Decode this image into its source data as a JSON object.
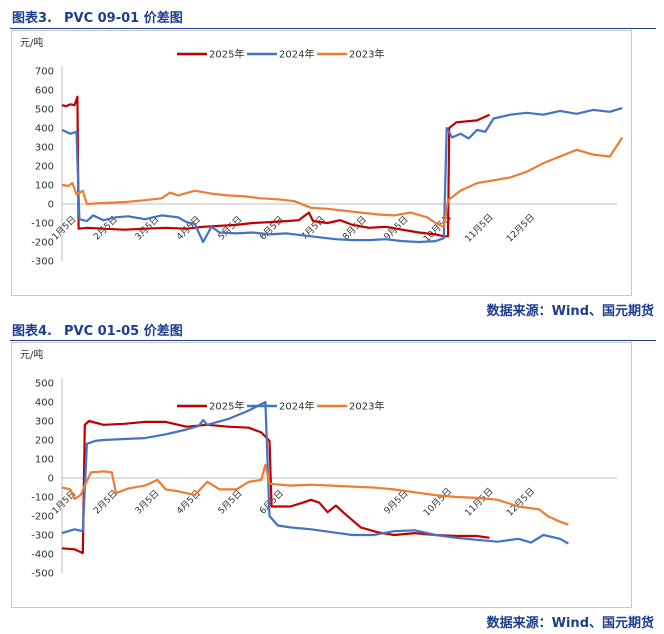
{
  "source_text": "数据来源：Wind、国元期货",
  "colors": {
    "y2025": "#c00000",
    "y2024": "#4472c4",
    "y2023": "#ed7d31",
    "title": "#1f3d8f"
  },
  "chart_data": [
    {
      "type": "line",
      "figure_num": "图表3.",
      "title": "PVC 09-01 价差图",
      "unit": "元/吨",
      "ylim": [
        -300,
        700
      ],
      "yticks": [
        "700",
        "600",
        "500",
        "400",
        "300",
        "200",
        "100",
        "0",
        "-100",
        "-200",
        "-300"
      ],
      "xticks": [
        "1月5日",
        "2月5日",
        "3月5日",
        "4月5日",
        "5月5日",
        "6月5日",
        "7月5日",
        "8月5日",
        "9月5日",
        "10月5日",
        "11月5日",
        "12月5日"
      ],
      "legend": "top-center",
      "grid": false,
      "series": [
        {
          "name": "2025年",
          "color": "#c00000",
          "points": [
            [
              0,
              520
            ],
            [
              0.1,
              515
            ],
            [
              0.2,
              525
            ],
            [
              0.3,
              520
            ],
            [
              0.37,
              565
            ],
            [
              0.4,
              -130
            ],
            [
              0.6,
              -125
            ],
            [
              1,
              -130
            ],
            [
              1.5,
              -135
            ],
            [
              2,
              -130
            ],
            [
              2.5,
              -125
            ],
            [
              3,
              -130
            ],
            [
              3.4,
              -120
            ],
            [
              3.8,
              -115
            ],
            [
              4.2,
              -110
            ],
            [
              4.6,
              -100
            ],
            [
              5,
              -95
            ],
            [
              5.4,
              -90
            ],
            [
              5.7,
              -85
            ],
            [
              5.95,
              -45
            ],
            [
              6.05,
              -90
            ],
            [
              6.4,
              -100
            ],
            [
              6.7,
              -85
            ],
            [
              7,
              -110
            ],
            [
              7.4,
              -125
            ],
            [
              7.8,
              -120
            ],
            [
              8.2,
              -135
            ],
            [
              8.6,
              -150
            ],
            [
              9,
              -160
            ],
            [
              9.2,
              -170
            ],
            [
              9.3,
              -170
            ],
            [
              9.33,
              400
            ],
            [
              9.5,
              430
            ],
            [
              10,
              440
            ],
            [
              10.3,
              470
            ]
          ]
        },
        {
          "name": "2024年",
          "color": "#4472c4",
          "points": [
            [
              0,
              390
            ],
            [
              0.2,
              370
            ],
            [
              0.35,
              380
            ],
            [
              0.42,
              -80
            ],
            [
              0.6,
              -90
            ],
            [
              0.75,
              -60
            ],
            [
              1,
              -85
            ],
            [
              1.3,
              -70
            ],
            [
              1.6,
              -65
            ],
            [
              2,
              -80
            ],
            [
              2.4,
              -60
            ],
            [
              2.8,
              -70
            ],
            [
              3,
              -95
            ],
            [
              3.2,
              -105
            ],
            [
              3.4,
              -200
            ],
            [
              3.6,
              -120
            ],
            [
              3.8,
              -150
            ],
            [
              4.2,
              -155
            ],
            [
              4.6,
              -150
            ],
            [
              5,
              -160
            ],
            [
              5.4,
              -155
            ],
            [
              5.8,
              -165
            ],
            [
              6.2,
              -175
            ],
            [
              6.6,
              -185
            ],
            [
              7,
              -190
            ],
            [
              7.4,
              -190
            ],
            [
              7.8,
              -185
            ],
            [
              8.2,
              -195
            ],
            [
              8.6,
              -200
            ],
            [
              9,
              -195
            ],
            [
              9.2,
              -180
            ],
            [
              9.27,
              400
            ],
            [
              9.4,
              350
            ],
            [
              9.6,
              370
            ],
            [
              9.8,
              345
            ],
            [
              10,
              390
            ],
            [
              10.2,
              380
            ],
            [
              10.4,
              450
            ],
            [
              10.8,
              470
            ],
            [
              11.2,
              480
            ],
            [
              11.6,
              470
            ],
            [
              12,
              490
            ],
            [
              12.4,
              475
            ],
            [
              12.8,
              495
            ],
            [
              13.2,
              485
            ],
            [
              13.5,
              505
            ]
          ]
        },
        {
          "name": "2023年",
          "color": "#ed7d31",
          "points": [
            [
              0,
              100
            ],
            [
              0.15,
              95
            ],
            [
              0.25,
              110
            ],
            [
              0.35,
              50
            ],
            [
              0.5,
              70
            ],
            [
              0.6,
              0
            ],
            [
              1,
              5
            ],
            [
              1.5,
              10
            ],
            [
              2,
              20
            ],
            [
              2.4,
              30
            ],
            [
              2.6,
              60
            ],
            [
              2.8,
              45
            ],
            [
              3.2,
              70
            ],
            [
              3.6,
              55
            ],
            [
              4,
              45
            ],
            [
              4.4,
              40
            ],
            [
              4.8,
              30
            ],
            [
              5.2,
              25
            ],
            [
              5.6,
              15
            ],
            [
              6,
              -20
            ],
            [
              6.4,
              -25
            ],
            [
              6.8,
              -35
            ],
            [
              7.2,
              -45
            ],
            [
              7.6,
              -55
            ],
            [
              8,
              -60
            ],
            [
              8.4,
              -45
            ],
            [
              8.8,
              -70
            ],
            [
              9,
              -100
            ],
            [
              9.2,
              -120
            ],
            [
              9.3,
              20
            ],
            [
              9.6,
              70
            ],
            [
              10,
              110
            ],
            [
              10.4,
              125
            ],
            [
              10.8,
              140
            ],
            [
              11.2,
              170
            ],
            [
              11.6,
              215
            ],
            [
              12,
              250
            ],
            [
              12.4,
              285
            ],
            [
              12.8,
              260
            ],
            [
              13.2,
              250
            ],
            [
              13.5,
              350
            ]
          ]
        }
      ]
    },
    {
      "type": "line",
      "figure_num": "图表4.",
      "title": "PVC 01-05 价差图",
      "unit": "元/吨",
      "ylim": [
        -500,
        500
      ],
      "yticks": [
        "500",
        "400",
        "300",
        "200",
        "100",
        "0",
        "-100",
        "-200",
        "-300",
        "-400",
        "-500"
      ],
      "xticks": [
        "1月5日",
        "2月5日",
        "3月5日",
        "4月5日",
        "5月5日",
        "6月5日",
        "9月5日",
        "10月5日",
        "11月5日",
        "12月5日"
      ],
      "legend": "top-center",
      "grid": false,
      "series": [
        {
          "name": "2025年",
          "color": "#c00000",
          "points": [
            [
              0,
              -370
            ],
            [
              0.3,
              -375
            ],
            [
              0.5,
              -395
            ],
            [
              0.55,
              280
            ],
            [
              0.65,
              300
            ],
            [
              1,
              280
            ],
            [
              1.5,
              285
            ],
            [
              2,
              295
            ],
            [
              2.5,
              295
            ],
            [
              3,
              270
            ],
            [
              3.5,
              280
            ],
            [
              4,
              270
            ],
            [
              4.5,
              265
            ],
            [
              4.8,
              240
            ],
            [
              5,
              195
            ],
            [
              5.05,
              -150
            ],
            [
              5.5,
              -150
            ],
            [
              5.8,
              -130
            ],
            [
              6,
              -115
            ],
            [
              6.2,
              -130
            ],
            [
              6.4,
              -180
            ],
            [
              6.6,
              -145
            ],
            [
              6.8,
              -185
            ],
            [
              7.2,
              -260
            ],
            [
              7.6,
              -285
            ],
            [
              8,
              -300
            ],
            [
              8.5,
              -290
            ],
            [
              9,
              -300
            ],
            [
              9.5,
              -305
            ],
            [
              10,
              -305
            ],
            [
              10.3,
              -315
            ]
          ]
        },
        {
          "name": "2024年",
          "color": "#4472c4",
          "points": [
            [
              0,
              -290
            ],
            [
              0.3,
              -270
            ],
            [
              0.5,
              -280
            ],
            [
              0.6,
              180
            ],
            [
              0.8,
              195
            ],
            [
              1,
              200
            ],
            [
              1.5,
              205
            ],
            [
              2,
              210
            ],
            [
              2.5,
              230
            ],
            [
              3,
              255
            ],
            [
              3.3,
              275
            ],
            [
              3.4,
              305
            ],
            [
              3.5,
              280
            ],
            [
              4,
              310
            ],
            [
              4.5,
              355
            ],
            [
              4.9,
              400
            ],
            [
              5,
              -200
            ],
            [
              5.2,
              -250
            ],
            [
              5.5,
              -260
            ],
            [
              6,
              -270
            ],
            [
              6.5,
              -285
            ],
            [
              7,
              -300
            ],
            [
              7.5,
              -300
            ],
            [
              8,
              -280
            ],
            [
              8.5,
              -275
            ],
            [
              9,
              -300
            ],
            [
              9.5,
              -315
            ],
            [
              10,
              -325
            ],
            [
              10.5,
              -335
            ],
            [
              11,
              -320
            ],
            [
              11.3,
              -340
            ],
            [
              11.6,
              -300
            ],
            [
              12,
              -320
            ],
            [
              12.2,
              -345
            ]
          ]
        },
        {
          "name": "2023年",
          "color": "#ed7d31",
          "points": [
            [
              0,
              -50
            ],
            [
              0.2,
              -60
            ],
            [
              0.3,
              -110
            ],
            [
              0.45,
              -90
            ],
            [
              0.55,
              -40
            ],
            [
              0.7,
              30
            ],
            [
              1,
              35
            ],
            [
              1.2,
              30
            ],
            [
              1.3,
              -80
            ],
            [
              1.6,
              -55
            ],
            [
              2,
              -40
            ],
            [
              2.3,
              -10
            ],
            [
              2.5,
              -60
            ],
            [
              2.8,
              -70
            ],
            [
              3.2,
              -90
            ],
            [
              3.5,
              -20
            ],
            [
              3.8,
              -60
            ],
            [
              4.2,
              -60
            ],
            [
              4.5,
              -20
            ],
            [
              4.8,
              -10
            ],
            [
              4.9,
              70
            ],
            [
              5,
              -30
            ],
            [
              5.5,
              -40
            ],
            [
              6,
              -35
            ],
            [
              6.5,
              -40
            ],
            [
              7,
              -45
            ],
            [
              7.5,
              -50
            ],
            [
              8,
              -60
            ],
            [
              8.5,
              -75
            ],
            [
              9,
              -90
            ],
            [
              9.5,
              -100
            ],
            [
              10,
              -105
            ],
            [
              10.5,
              -115
            ],
            [
              11,
              -150
            ],
            [
              11.5,
              -165
            ],
            [
              11.7,
              -200
            ],
            [
              12,
              -230
            ],
            [
              12.2,
              -245
            ]
          ]
        }
      ]
    }
  ]
}
